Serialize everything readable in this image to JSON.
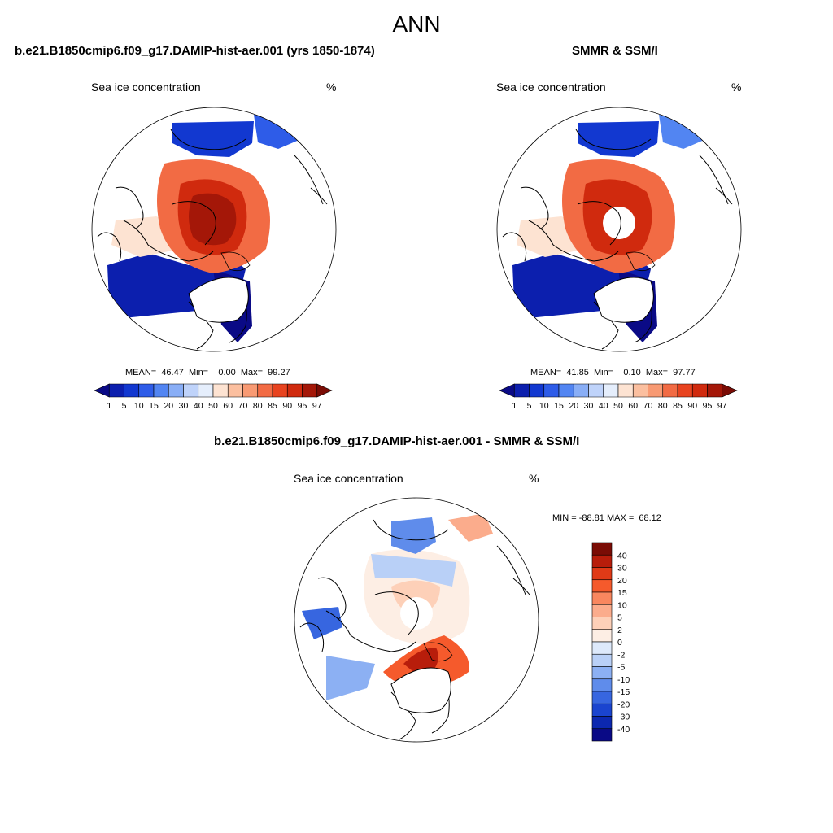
{
  "figure_title": "ANN",
  "panels": [
    {
      "title": "b.e21.B1850cmip6.f09_g17.DAMIP-hist-aer.001 (yrs 1850-1874)",
      "left_label": "Sea ice concentration",
      "right_label": "%",
      "stats": "MEAN=  46.47  Min=    0.00  Max=  99.27"
    },
    {
      "title": "SMMR & SSM/I",
      "left_label": "Sea ice concentration",
      "right_label": "%",
      "stats": "MEAN=  41.85  Min=    0.10  Max=  97.77"
    },
    {
      "title": "b.e21.B1850cmip6.f09_g17.DAMIP-hist-aer.001 - SMMR & SSM/I",
      "left_label": "Sea ice concentration",
      "right_label": "%",
      "stats": "MIN = -88.81 MAX =  68.12"
    }
  ],
  "chart_data": [
    {
      "type": "heatmap",
      "projection": "north polar stereographic",
      "title": "b.e21.B1850cmip6.f09_g17.DAMIP-hist-aer.001 (yrs 1850-1874)",
      "variable": "Sea ice concentration",
      "units": "%",
      "mean": 46.47,
      "min": 0.0,
      "max": 99.27,
      "colorbar_levels": [
        "1",
        "5",
        "10",
        "15",
        "20",
        "30",
        "40",
        "50",
        "60",
        "70",
        "80",
        "85",
        "90",
        "95",
        "97"
      ],
      "colorbar_colors": [
        "#0a0a86",
        "#0c1fae",
        "#1238d0",
        "#2e5ce8",
        "#5285f2",
        "#89aef6",
        "#bfd3fa",
        "#e5eefc",
        "#fde3d2",
        "#fbbf9f",
        "#f89a73",
        "#f26b44",
        "#e8431f",
        "#d02a0e",
        "#a41708",
        "#7a0c05"
      ],
      "pole_hole": false
    },
    {
      "type": "heatmap",
      "projection": "north polar stereographic",
      "title": "SMMR & SSM/I",
      "variable": "Sea ice concentration",
      "units": "%",
      "mean": 41.85,
      "min": 0.1,
      "max": 97.77,
      "colorbar_levels": [
        "1",
        "5",
        "10",
        "15",
        "20",
        "30",
        "40",
        "50",
        "60",
        "70",
        "80",
        "85",
        "90",
        "95",
        "97"
      ],
      "colorbar_colors": [
        "#0a0a86",
        "#0c1fae",
        "#1238d0",
        "#2e5ce8",
        "#5285f2",
        "#89aef6",
        "#bfd3fa",
        "#e5eefc",
        "#fde3d2",
        "#fbbf9f",
        "#f89a73",
        "#f26b44",
        "#e8431f",
        "#d02a0e",
        "#a41708",
        "#7a0c05"
      ],
      "pole_hole": true
    },
    {
      "type": "heatmap",
      "projection": "north polar stereographic",
      "title": "b.e21.B1850cmip6.f09_g17.DAMIP-hist-aer.001 - SMMR & SSM/I",
      "variable": "Sea ice concentration",
      "units": "%",
      "min": -88.81,
      "max": 68.12,
      "colorbar_levels": [
        "40",
        "30",
        "20",
        "15",
        "10",
        "5",
        "2",
        "0",
        "-2",
        "-5",
        "-10",
        "-15",
        "-20",
        "-30",
        "-40"
      ],
      "colorbar_colors": [
        "#7a0c05",
        "#b81d0b",
        "#e03a17",
        "#f55a2c",
        "#f8875f",
        "#fbac8c",
        "#fdd0b8",
        "#fdeee4",
        "#dde9fb",
        "#b9d0f7",
        "#8cb0f3",
        "#5f8ceb",
        "#3766e0",
        "#1a44cf",
        "#0c28b0",
        "#0a0a86"
      ],
      "pole_hole": true
    }
  ]
}
